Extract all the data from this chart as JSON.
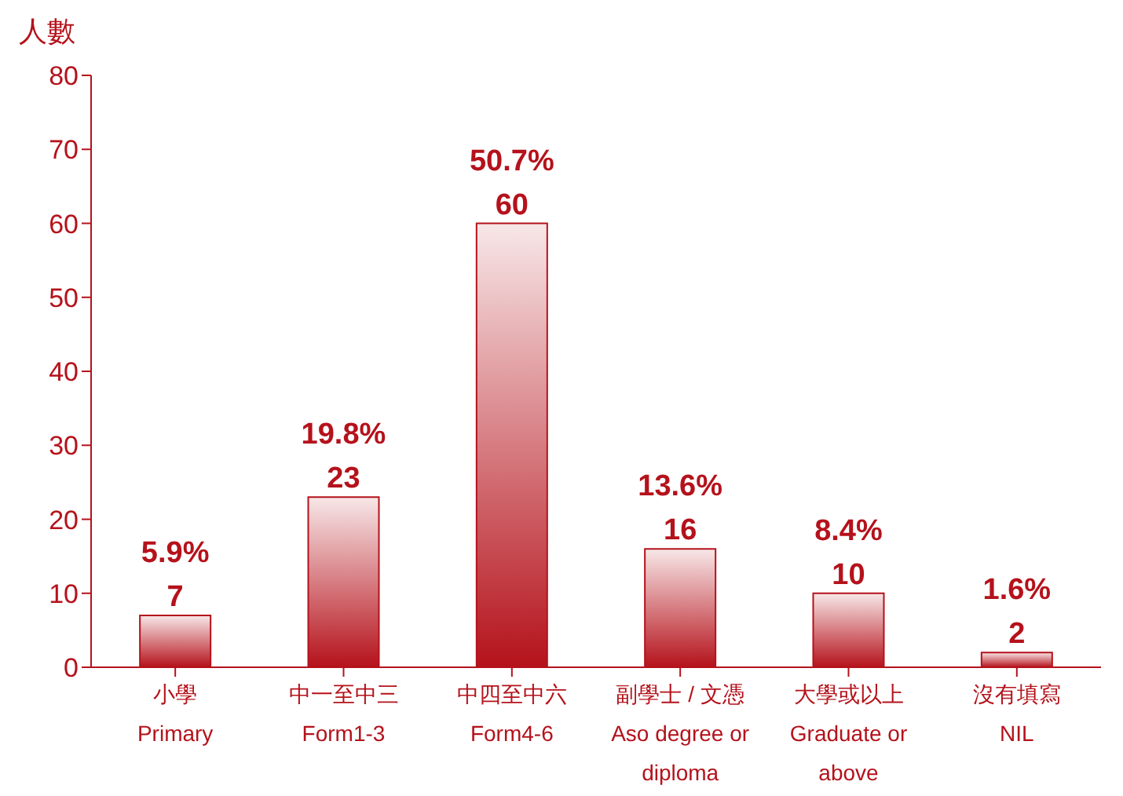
{
  "chart_data": {
    "type": "bar",
    "ylabel": "人數",
    "categories": [
      "小學\nPrimary",
      "中一至中三\nForm1-3",
      "中四至中六\nForm4-6",
      "副學士 / 文憑\nAso degree or\ndiploma",
      "大學或以上\nGraduate or\nabove",
      "沒有填寫\nNIL"
    ],
    "values": [
      7,
      23,
      60,
      16,
      10,
      2
    ],
    "color": "#b5121b",
    "ylim": [
      0,
      80
    ],
    "yticks": [
      0,
      10,
      20,
      30,
      40,
      50,
      60,
      70,
      80
    ],
    "grid": false,
    "data_labels": true,
    "annotations": [
      {
        "text": "5.9%",
        "x": "小學\nPrimary",
        "y": 7
      },
      {
        "text": "19.8%",
        "x": "中一至中三\nForm1-3",
        "y": 23
      },
      {
        "text": "50.7%",
        "x": "中四至中六\nForm4-6",
        "y": 60
      },
      {
        "text": "13.6%",
        "x": "副學士 / 文憑\nAso degree or\ndiploma",
        "y": 16
      },
      {
        "text": "8.4%",
        "x": "大學或以上\nGraduate or\nabove",
        "y": 10
      },
      {
        "text": "1.6%",
        "x": "沒有填寫\nNIL",
        "y": 2
      }
    ]
  }
}
